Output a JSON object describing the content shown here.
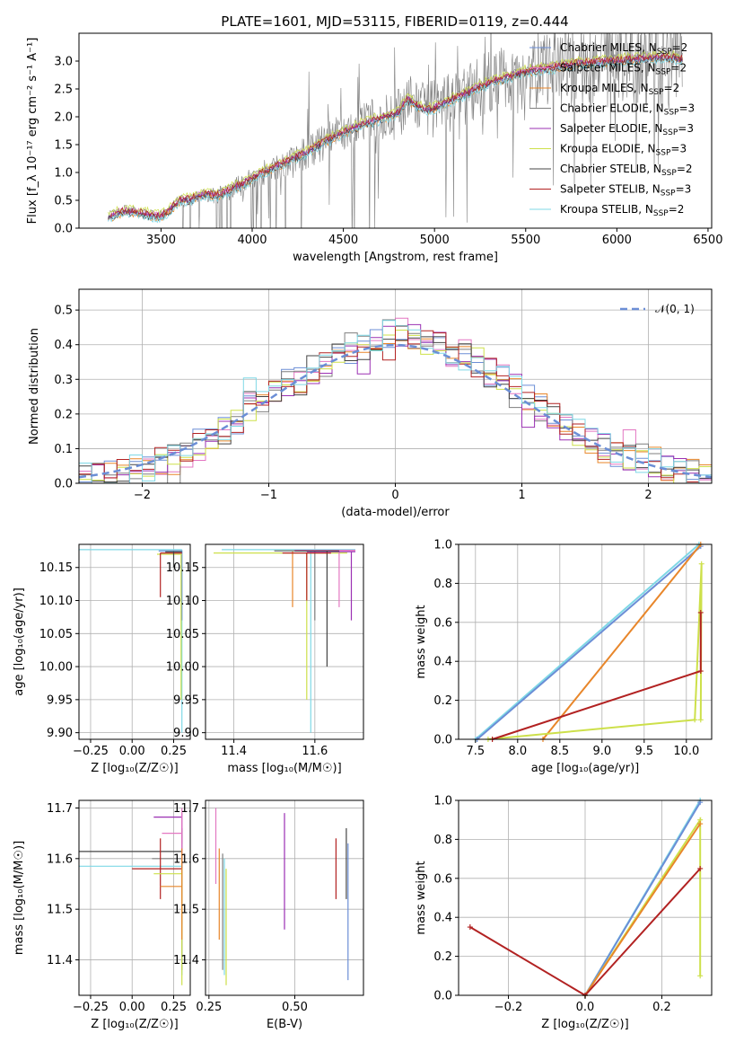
{
  "figure": {
    "title": "PLATE=1601, MJD=53115, FIBERID=0119, z=0.444"
  },
  "colors": {
    "chabrier_miles": "#6b8ed6",
    "salpeter_miles": "#e377c2",
    "kroupa_miles": "#e8862a",
    "chabrier_elodie": "#7f7f7f",
    "salpeter_elodie": "#9b30b3",
    "kroupa_elodie": "#cde04a",
    "chabrier_stelib": "#444444",
    "salpeter_stelib": "#b22222",
    "kroupa_stelib": "#7fd8e6",
    "normal_curve": "#6b8ed6",
    "data": "#808080"
  },
  "chart_data": [
    {
      "id": "spectrum",
      "type": "line",
      "xlabel": "wavelength [Angstrom, rest frame]",
      "ylabel": "Flux [f_λ 10⁻¹⁷ erg cm⁻² s⁻¹ A⁻¹]",
      "xlim": [
        3050,
        6520
      ],
      "ylim": [
        0,
        3.5
      ],
      "xticks": [
        "3500",
        "4000",
        "4500",
        "5000",
        "5500",
        "6000",
        "6500"
      ],
      "yticks": [
        "0.0",
        "0.5",
        "1.0",
        "1.5",
        "2.0",
        "2.5",
        "3.0"
      ],
      "legend_position": "top-right",
      "legend": [
        {
          "name": "Chabrier MILES, N",
          "sub": "SSP",
          "val": "=2",
          "color_key": "chabrier_miles"
        },
        {
          "name": "Salpeter MILES, N",
          "sub": "SSP",
          "val": "=2",
          "color_key": "salpeter_miles"
        },
        {
          "name": "Kroupa MILES, N",
          "sub": "SSP",
          "val": "=2",
          "color_key": "kroupa_miles"
        },
        {
          "name": "Chabrier ELODIE, N",
          "sub": "SSP",
          "val": "=3",
          "color_key": "chabrier_elodie"
        },
        {
          "name": "Salpeter ELODIE, N",
          "sub": "SSP",
          "val": "=3",
          "color_key": "salpeter_elodie"
        },
        {
          "name": "Kroupa ELODIE, N",
          "sub": "SSP",
          "val": "=3",
          "color_key": "kroupa_elodie"
        },
        {
          "name": "Chabrier STELIB, N",
          "sub": "SSP",
          "val": "=2",
          "color_key": "chabrier_stelib"
        },
        {
          "name": "Salpeter STELIB, N",
          "sub": "SSP",
          "val": "=3",
          "color_key": "salpeter_stelib"
        },
        {
          "name": "Kroupa STELIB, N",
          "sub": "SSP",
          "val": "=2",
          "color_key": "kroupa_stelib"
        }
      ],
      "model_curve": {
        "x": [
          3210,
          3260,
          3300,
          3350,
          3400,
          3450,
          3500,
          3550,
          3600,
          3650,
          3700,
          3750,
          3800,
          3850,
          3900,
          3950,
          4000,
          4100,
          4200,
          4300,
          4400,
          4500,
          4600,
          4700,
          4800,
          4850,
          4900,
          4950,
          5000,
          5100,
          5200,
          5300,
          5400,
          5500,
          5600,
          5700,
          5800,
          5900,
          6000,
          6100,
          6200,
          6300,
          6350
        ],
        "y": [
          0.18,
          0.25,
          0.3,
          0.28,
          0.25,
          0.22,
          0.2,
          0.32,
          0.48,
          0.5,
          0.55,
          0.6,
          0.58,
          0.62,
          0.72,
          0.78,
          0.9,
          1.05,
          1.2,
          1.35,
          1.55,
          1.7,
          1.85,
          1.95,
          2.05,
          2.3,
          2.2,
          2.1,
          2.15,
          2.3,
          2.45,
          2.6,
          2.7,
          2.8,
          2.85,
          2.9,
          2.95,
          2.97,
          3.0,
          3.02,
          3.05,
          3.05,
          3.03
        ]
      },
      "data_note": "observed spectrum shown as noisy grey line"
    },
    {
      "id": "residuals",
      "type": "line",
      "xlabel": "(data-model)/error",
      "ylabel": "Normed distribution",
      "xlim": [
        -2.5,
        2.5
      ],
      "ylim": [
        0,
        0.56
      ],
      "xticks": [
        "−2",
        "−1",
        "0",
        "1",
        "2"
      ],
      "yticks": [
        "0.0",
        "0.1",
        "0.2",
        "0.3",
        "0.4",
        "0.5"
      ],
      "legend_position": "top-right",
      "legend": [
        {
          "name": "𝒩(0, 1)",
          "color_key": "normal_curve"
        }
      ],
      "bin_centers": [
        -2.45,
        -2.35,
        -2.25,
        -2.15,
        -2.05,
        -1.95,
        -1.85,
        -1.75,
        -1.65,
        -1.55,
        -1.45,
        -1.35,
        -1.25,
        -1.15,
        -1.05,
        -0.95,
        -0.85,
        -0.75,
        -0.65,
        -0.55,
        -0.45,
        -0.35,
        -0.25,
        -0.15,
        -0.05,
        0.05,
        0.15,
        0.25,
        0.35,
        0.45,
        0.55,
        0.65,
        0.75,
        0.85,
        0.95,
        1.05,
        1.15,
        1.25,
        1.35,
        1.45,
        1.55,
        1.65,
        1.75,
        1.85,
        1.95,
        2.05,
        2.15,
        2.25,
        2.35,
        2.45
      ],
      "hist_base": [
        0.02,
        0.02,
        0.03,
        0.03,
        0.04,
        0.05,
        0.06,
        0.07,
        0.09,
        0.1,
        0.12,
        0.15,
        0.18,
        0.22,
        0.25,
        0.27,
        0.29,
        0.3,
        0.33,
        0.35,
        0.38,
        0.39,
        0.4,
        0.41,
        0.43,
        0.44,
        0.42,
        0.41,
        0.4,
        0.38,
        0.37,
        0.35,
        0.32,
        0.3,
        0.27,
        0.25,
        0.22,
        0.2,
        0.17,
        0.15,
        0.12,
        0.1,
        0.09,
        0.08,
        0.07,
        0.06,
        0.05,
        0.04,
        0.03,
        0.02
      ]
    },
    {
      "id": "age_vs_Z",
      "type": "scatter",
      "xlabel": "Z [log₁₀(Z/Z☉)]",
      "ylabel": "age  [log₁₀(age/yr)]",
      "xlim": [
        -0.32,
        0.35
      ],
      "ylim": [
        9.89,
        10.185
      ],
      "xticks": [
        "−0.25",
        "0.00",
        "0.25"
      ],
      "yticks": [
        "9.90",
        "9.95",
        "10.00",
        "10.05",
        "10.10",
        "10.15"
      ]
    },
    {
      "id": "age_vs_mass",
      "type": "scatter",
      "xlabel": "mass [log₁₀(M/M☉)]",
      "xlim": [
        11.33,
        11.72
      ],
      "ylim": [
        9.89,
        10.185
      ],
      "xticks": [
        "11.4",
        "11.6"
      ],
      "yticks": [
        "9.90",
        "9.95",
        "10.00",
        "10.05",
        "10.10",
        "10.15"
      ]
    },
    {
      "id": "weight_vs_age",
      "type": "line",
      "xlabel": "age  [log₁₀(age/yr)]",
      "ylabel": "mass weight",
      "xlim": [
        7.3,
        10.3
      ],
      "ylim": [
        0,
        1.0
      ],
      "xticks": [
        "7.5",
        "8.0",
        "8.5",
        "9.0",
        "9.5",
        "10.0"
      ],
      "yticks": [
        "0.0",
        "0.2",
        "0.4",
        "0.6",
        "0.8",
        "1.0"
      ],
      "series": [
        {
          "color_key": "kroupa_stelib",
          "x": [
            7.5,
            10.15
          ],
          "y": [
            0.0,
            1.0
          ]
        },
        {
          "color_key": "chabrier_miles",
          "x": [
            7.52,
            10.17
          ],
          "y": [
            0.0,
            0.99
          ]
        },
        {
          "color_key": "kroupa_miles",
          "x": [
            8.3,
            10.17
          ],
          "y": [
            0.0,
            1.0
          ]
        },
        {
          "color_key": "kroupa_elodie",
          "x": [
            7.65,
            10.1,
            10.18,
            10.17
          ],
          "y": [
            0.0,
            0.1,
            0.9,
            0.1
          ]
        },
        {
          "color_key": "salpeter_stelib",
          "x": [
            7.7,
            10.17,
            10.17
          ],
          "y": [
            0.0,
            0.35,
            0.65
          ]
        }
      ]
    },
    {
      "id": "mass_vs_Z",
      "type": "scatter",
      "xlabel": "Z [log₁₀(Z/Z☉)]",
      "ylabel": "mass [log₁₀(M/M☉)]",
      "xlim": [
        -0.32,
        0.35
      ],
      "ylim": [
        11.33,
        11.715
      ],
      "xticks": [
        "−0.25",
        "0.00",
        "0.25"
      ],
      "yticks": [
        "11.4",
        "11.5",
        "11.6",
        "11.7"
      ]
    },
    {
      "id": "mass_vs_ebv",
      "type": "scatter",
      "xlabel": "E(B-V)",
      "xlim": [
        0.24,
        0.7
      ],
      "ylim": [
        11.33,
        11.715
      ],
      "xticks": [
        "0.25",
        "0.50"
      ],
      "yticks": [
        "11.4",
        "11.5",
        "11.6",
        "11.7"
      ],
      "segments": [
        {
          "color_key": "salpeter_miles",
          "x": 0.27,
          "y": [
            11.55,
            11.7
          ]
        },
        {
          "color_key": "kroupa_miles",
          "x": 0.28,
          "y": [
            11.44,
            11.62
          ]
        },
        {
          "color_key": "chabrier_elodie",
          "x": 0.29,
          "y": [
            11.38,
            11.61
          ]
        },
        {
          "color_key": "kroupa_stelib",
          "x": 0.295,
          "y": [
            11.37,
            11.6
          ]
        },
        {
          "color_key": "kroupa_elodie",
          "x": 0.3,
          "y": [
            11.35,
            11.58
          ]
        },
        {
          "color_key": "salpeter_elodie",
          "x": 0.47,
          "y": [
            11.46,
            11.69
          ]
        },
        {
          "color_key": "salpeter_stelib",
          "x": 0.62,
          "y": [
            11.52,
            11.64
          ]
        },
        {
          "color_key": "chabrier_stelib",
          "x": 0.65,
          "y": [
            11.52,
            11.66
          ]
        },
        {
          "color_key": "chabrier_miles",
          "x": 0.655,
          "y": [
            11.36,
            11.63
          ]
        }
      ]
    },
    {
      "id": "weight_vs_Z",
      "type": "line",
      "xlabel": "Z [log₁₀(Z/Z☉)]",
      "ylabel": "mass weight",
      "xlim": [
        -0.33,
        0.33
      ],
      "ylim": [
        0,
        1.0
      ],
      "xticks": [
        "−0.2",
        "0.0",
        "0.2"
      ],
      "yticks": [
        "0.0",
        "0.2",
        "0.4",
        "0.6",
        "0.8",
        "1.0"
      ],
      "series": [
        {
          "color_key": "kroupa_stelib",
          "x": [
            0.0,
            0.3
          ],
          "y": [
            0.0,
            1.0
          ]
        },
        {
          "color_key": "chabrier_miles",
          "x": [
            0.0,
            0.3
          ],
          "y": [
            0.0,
            0.99
          ]
        },
        {
          "color_key": "kroupa_elodie",
          "x": [
            0.0,
            0.3,
            0.3
          ],
          "y": [
            0.0,
            0.9,
            0.1
          ]
        },
        {
          "color_key": "kroupa_miles",
          "x": [
            0.0,
            0.3
          ],
          "y": [
            0.0,
            0.88
          ]
        },
        {
          "color_key": "salpeter_stelib",
          "x": [
            -0.3,
            0.0,
            0.3
          ],
          "y": [
            0.35,
            0.0,
            0.65
          ]
        }
      ]
    }
  ]
}
